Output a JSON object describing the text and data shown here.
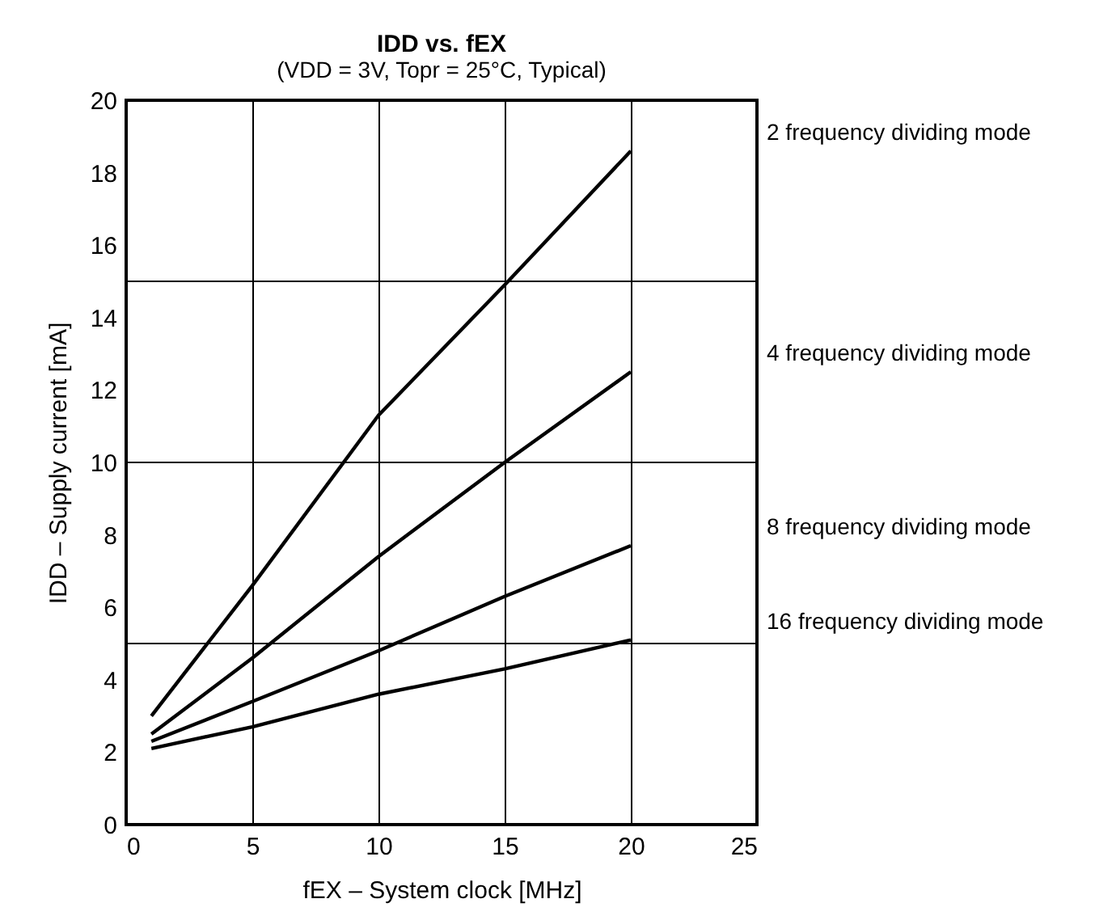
{
  "chart_data": {
    "type": "line",
    "title": "IDD vs. fEX",
    "subtitle": "(VDD = 3V, Topr = 25°C, Typical)",
    "xlabel": "fEX – System clock [MHz]",
    "ylabel": "IDD – Supply current [mA]",
    "x": [
      1,
      5,
      10,
      15,
      20
    ],
    "series": [
      {
        "name": "2 frequency dividing mode",
        "color": "#000000",
        "values": [
          3.0,
          6.6,
          11.3,
          14.9,
          18.6
        ]
      },
      {
        "name": "4 frequency dividing mode",
        "color": "#000000",
        "values": [
          2.5,
          4.6,
          7.4,
          10.0,
          12.5
        ]
      },
      {
        "name": "8 frequency dividing mode",
        "color": "#000000",
        "values": [
          2.3,
          3.4,
          4.8,
          6.3,
          7.7
        ]
      },
      {
        "name": "16 frequency dividing mode",
        "color": "#000000",
        "values": [
          2.1,
          2.7,
          3.6,
          4.3,
          5.1
        ]
      }
    ],
    "xlim": [
      0,
      25
    ],
    "xticks": [
      0,
      5,
      10,
      15,
      20,
      25
    ],
    "ylim": [
      0,
      20
    ],
    "yticks": [
      0,
      2,
      4,
      6,
      8,
      10,
      12,
      14,
      16,
      18,
      20
    ],
    "grid": "x",
    "legend": false,
    "marker": "none",
    "line_style": "solid",
    "ref_lines": [
      {
        "axis": "y",
        "value": 5,
        "color": "#000000"
      },
      {
        "axis": "y",
        "value": 10,
        "color": "#000000"
      },
      {
        "axis": "y",
        "value": 15,
        "color": "#000000"
      }
    ]
  }
}
